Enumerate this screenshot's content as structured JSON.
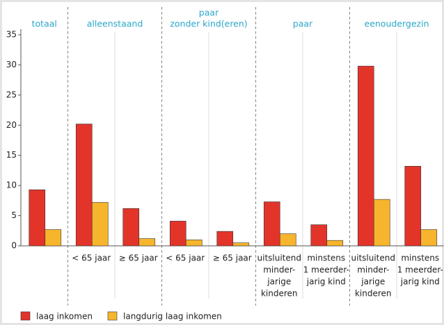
{
  "chart_data": {
    "type": "bar",
    "groups": [
      {
        "label": [
          "totaal"
        ],
        "span": 1
      },
      {
        "label": [
          "alleenstaand"
        ],
        "span": 2
      },
      {
        "label": [
          "paar",
          "zonder kind(eren)"
        ],
        "span": 2
      },
      {
        "label": [
          "paar"
        ],
        "span": 2
      },
      {
        "label": [
          "eenoudergezin"
        ],
        "span": 2
      }
    ],
    "categories": [
      null,
      [
        "< 65 jaar"
      ],
      [
        "≥ 65 jaar"
      ],
      [
        "< 65 jaar"
      ],
      [
        "≥ 65 jaar"
      ],
      [
        "uitsluitend",
        "minder-",
        "jarige",
        "kinderen"
      ],
      [
        "minstens",
        "1 meerder-",
        "jarig kind"
      ],
      [
        "uitsluitend",
        "minder-",
        "jarige",
        "kinderen"
      ],
      [
        "minstens",
        "1 meerder-",
        "jarig kind"
      ]
    ],
    "series": [
      {
        "name": "laag inkomen",
        "color": "#e3342a",
        "values": [
          9.3,
          20.2,
          6.2,
          4.1,
          2.4,
          7.3,
          3.5,
          29.8,
          13.2
        ]
      },
      {
        "name": "langdurig laag inkomen",
        "color": "#f6b52c",
        "values": [
          2.7,
          7.2,
          1.2,
          1.0,
          0.5,
          2.0,
          0.9,
          7.7,
          2.7
        ]
      }
    ],
    "ylim": [
      0,
      35
    ],
    "yticks": [
      0,
      5,
      10,
      15,
      20,
      25,
      30,
      35
    ]
  }
}
